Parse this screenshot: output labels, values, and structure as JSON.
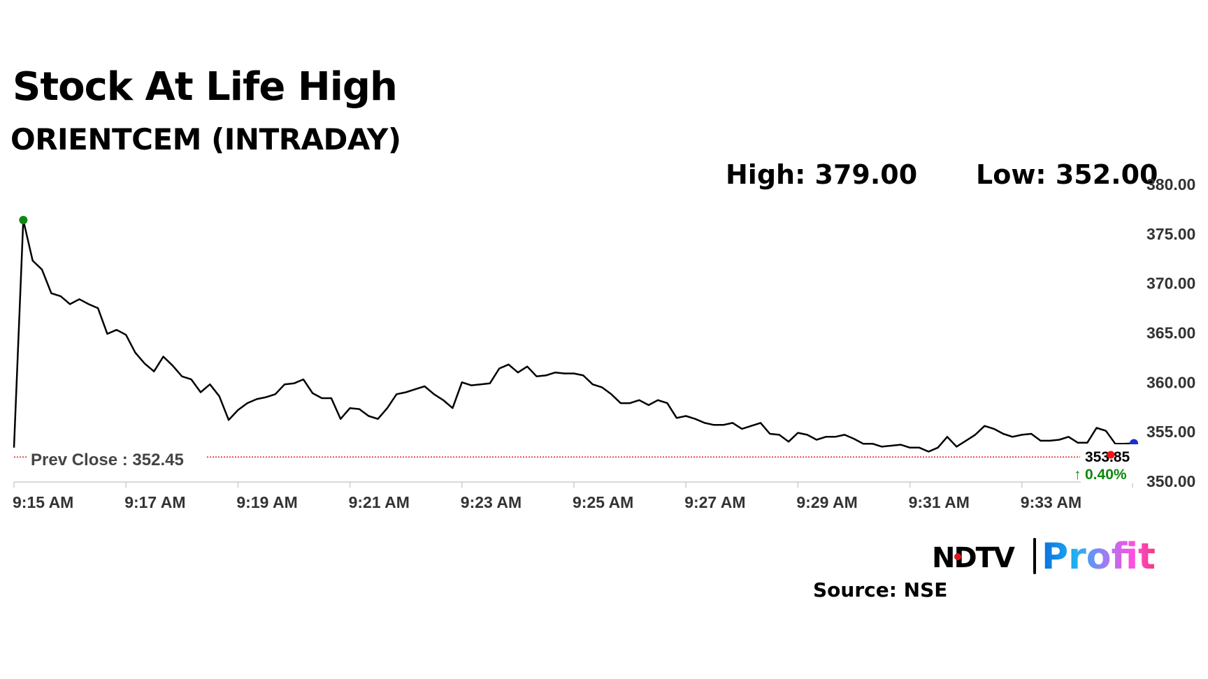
{
  "header": {
    "title": "Stock At Life High",
    "subtitle": "ORIENTCEM (INTRADAY)",
    "high": "High: 379.00",
    "low": "Low: 352.00"
  },
  "footer": {
    "source": "Source: NSE",
    "logo_text": "NDTV | Profit"
  },
  "chart_data": {
    "type": "line",
    "title": "ORIENTCEM (INTRADAY)",
    "xlabel": "",
    "ylabel": "",
    "ylim": [
      350,
      380
    ],
    "y_ticks": [
      "380.00",
      "375.00",
      "370.00",
      "365.00",
      "360.00",
      "355.00",
      "350.00"
    ],
    "x_ticks": [
      "9:15 AM",
      "9:17 AM",
      "9:19 AM",
      "9:21 AM",
      "9:23 AM",
      "9:25 AM",
      "9:27 AM",
      "9:29 AM",
      "9:31 AM",
      "9:33 AM"
    ],
    "x_start": "9:15:00",
    "x_step_seconds": 10,
    "grid": false,
    "prev_close": {
      "label": "Prev Close : 352.45",
      "value": 352.45,
      "color": "#e02020"
    },
    "last_price": {
      "label": "353.85",
      "change": "0.40%",
      "change_color": "#0a8a0a"
    },
    "series": [
      {
        "color": "#000000",
        "values": [
          353.4,
          376.4,
          372.3,
          371.4,
          369.0,
          368.7,
          367.9,
          368.4,
          367.9,
          367.5,
          364.9,
          365.3,
          364.8,
          363.0,
          361.9,
          361.1,
          362.6,
          361.7,
          360.6,
          360.3,
          359.0,
          359.8,
          358.6,
          356.2,
          357.2,
          357.9,
          358.3,
          358.5,
          358.8,
          359.8,
          359.9,
          360.3,
          358.9,
          358.4,
          358.4,
          356.3,
          357.4,
          357.3,
          356.6,
          356.3,
          357.4,
          358.8,
          359.0,
          359.3,
          359.6,
          358.8,
          358.2,
          357.4,
          360.0,
          359.7,
          359.8,
          359.9,
          361.4,
          361.8,
          361.0,
          361.6,
          360.6,
          360.7,
          361.0,
          360.9,
          360.9,
          360.7,
          359.8,
          359.5,
          358.8,
          357.9,
          357.9,
          358.2,
          357.7,
          358.2,
          357.9,
          356.4,
          356.6,
          356.3,
          355.9,
          355.7,
          355.7,
          355.9,
          355.3,
          355.6,
          355.9,
          354.8,
          354.7,
          354.0,
          354.9,
          354.7,
          354.2,
          354.5,
          354.5,
          354.7,
          354.3,
          353.8,
          353.8,
          353.5,
          353.6,
          353.7,
          353.4,
          353.4,
          353.0,
          353.4,
          354.5,
          353.5,
          354.1,
          354.7,
          355.6,
          355.3,
          354.8,
          354.5,
          354.7,
          354.8,
          354.1,
          354.1,
          354.2,
          354.5,
          353.9,
          353.9,
          355.4,
          355.1,
          353.8,
          353.8,
          353.85
        ]
      }
    ],
    "markers": [
      {
        "kind": "high",
        "index": 1,
        "color": "#118811"
      },
      {
        "kind": "current",
        "index": 120,
        "color": "#1a2fd0"
      },
      {
        "kind": "prev-close-point",
        "value": 352.7,
        "time_index": 117,
        "color": "#ff1010"
      }
    ]
  }
}
